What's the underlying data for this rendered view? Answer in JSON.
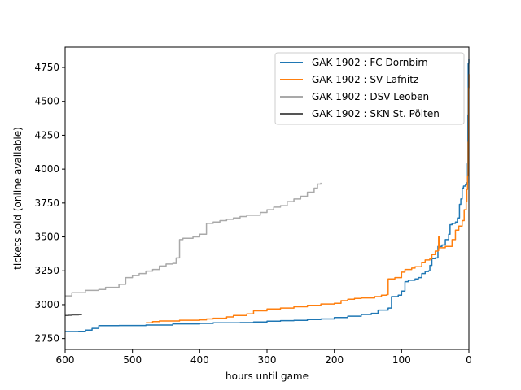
{
  "chart_data": {
    "type": "line",
    "title": "",
    "xlabel": "hours until game",
    "ylabel": "tickets sold (online available)",
    "xlim": [
      600,
      0
    ],
    "ylim": [
      2670,
      4900
    ],
    "x_ticks": [
      600,
      500,
      400,
      300,
      200,
      100,
      0
    ],
    "y_ticks": [
      2750,
      3000,
      3250,
      3500,
      3750,
      4000,
      4250,
      4500,
      4750
    ],
    "grid": false,
    "legend_position": "upper-right",
    "series": [
      {
        "name": "GAK 1902 : FC Dornbirn",
        "color": "#1f77b4",
        "points": [
          [
            600,
            2802
          ],
          [
            580,
            2803
          ],
          [
            570,
            2812
          ],
          [
            560,
            2825
          ],
          [
            550,
            2845
          ],
          [
            520,
            2846
          ],
          [
            480,
            2850
          ],
          [
            440,
            2858
          ],
          [
            400,
            2862
          ],
          [
            380,
            2866
          ],
          [
            340,
            2868
          ],
          [
            320,
            2872
          ],
          [
            300,
            2878
          ],
          [
            280,
            2882
          ],
          [
            260,
            2884
          ],
          [
            240,
            2890
          ],
          [
            220,
            2895
          ],
          [
            200,
            2905
          ],
          [
            180,
            2915
          ],
          [
            160,
            2928
          ],
          [
            145,
            2936
          ],
          [
            135,
            2960
          ],
          [
            120,
            2975
          ],
          [
            115,
            3060
          ],
          [
            105,
            3070
          ],
          [
            100,
            3100
          ],
          [
            95,
            3170
          ],
          [
            90,
            3180
          ],
          [
            80,
            3190
          ],
          [
            75,
            3200
          ],
          [
            70,
            3230
          ],
          [
            65,
            3245
          ],
          [
            60,
            3250
          ],
          [
            58,
            3290
          ],
          [
            55,
            3340
          ],
          [
            50,
            3345
          ],
          [
            46,
            3430
          ],
          [
            40,
            3440
          ],
          [
            35,
            3480
          ],
          [
            30,
            3520
          ],
          [
            28,
            3590
          ],
          [
            25,
            3600
          ],
          [
            20,
            3610
          ],
          [
            17,
            3640
          ],
          [
            14,
            3740
          ],
          [
            12,
            3780
          ],
          [
            10,
            3860
          ],
          [
            8,
            3875
          ],
          [
            5,
            3885
          ],
          [
            3,
            3900
          ],
          [
            2,
            4040
          ],
          [
            1.5,
            4400
          ],
          [
            1,
            4780
          ],
          [
            0,
            4810
          ]
        ]
      },
      {
        "name": "GAK 1902 : SV Lafnitz",
        "color": "#ff7f0e",
        "points": [
          [
            480,
            2866
          ],
          [
            470,
            2875
          ],
          [
            460,
            2880
          ],
          [
            430,
            2885
          ],
          [
            400,
            2888
          ],
          [
            390,
            2895
          ],
          [
            380,
            2900
          ],
          [
            360,
            2910
          ],
          [
            350,
            2920
          ],
          [
            330,
            2932
          ],
          [
            320,
            2955
          ],
          [
            300,
            2968
          ],
          [
            280,
            2975
          ],
          [
            260,
            2985
          ],
          [
            240,
            2995
          ],
          [
            220,
            3005
          ],
          [
            200,
            3010
          ],
          [
            190,
            3030
          ],
          [
            180,
            3040
          ],
          [
            170,
            3046
          ],
          [
            160,
            3050
          ],
          [
            140,
            3060
          ],
          [
            130,
            3070
          ],
          [
            122,
            3075
          ],
          [
            120,
            3190
          ],
          [
            110,
            3200
          ],
          [
            100,
            3240
          ],
          [
            95,
            3260
          ],
          [
            85,
            3270
          ],
          [
            80,
            3280
          ],
          [
            70,
            3310
          ],
          [
            65,
            3330
          ],
          [
            58,
            3340
          ],
          [
            55,
            3370
          ],
          [
            50,
            3395
          ],
          [
            46,
            3400
          ],
          [
            45,
            3500
          ],
          [
            44,
            3420
          ],
          [
            35,
            3430
          ],
          [
            25,
            3480
          ],
          [
            20,
            3550
          ],
          [
            15,
            3580
          ],
          [
            10,
            3620
          ],
          [
            7,
            3700
          ],
          [
            4,
            3760
          ],
          [
            3,
            3850
          ],
          [
            2,
            3950
          ],
          [
            1,
            4200
          ],
          [
            0.5,
            4600
          ],
          [
            0,
            4700
          ]
        ]
      },
      {
        "name": "GAK 1902 : DSV Leoben",
        "color": "#a9a9a9",
        "points": [
          [
            600,
            3065
          ],
          [
            590,
            3088
          ],
          [
            570,
            3105
          ],
          [
            550,
            3112
          ],
          [
            540,
            3128
          ],
          [
            520,
            3150
          ],
          [
            510,
            3200
          ],
          [
            500,
            3215
          ],
          [
            490,
            3230
          ],
          [
            480,
            3248
          ],
          [
            470,
            3260
          ],
          [
            460,
            3285
          ],
          [
            450,
            3300
          ],
          [
            440,
            3305
          ],
          [
            435,
            3345
          ],
          [
            430,
            3480
          ],
          [
            425,
            3490
          ],
          [
            410,
            3500
          ],
          [
            400,
            3520
          ],
          [
            390,
            3600
          ],
          [
            380,
            3610
          ],
          [
            370,
            3620
          ],
          [
            360,
            3630
          ],
          [
            350,
            3640
          ],
          [
            340,
            3650
          ],
          [
            330,
            3660
          ],
          [
            310,
            3680
          ],
          [
            300,
            3700
          ],
          [
            290,
            3720
          ],
          [
            280,
            3730
          ],
          [
            270,
            3760
          ],
          [
            260,
            3780
          ],
          [
            250,
            3800
          ],
          [
            240,
            3830
          ],
          [
            230,
            3860
          ],
          [
            225,
            3890
          ],
          [
            220,
            3900
          ]
        ]
      },
      {
        "name": "GAK 1902 : SKN St. Pölten",
        "color": "#555555",
        "points": [
          [
            600,
            2920
          ],
          [
            595,
            2922
          ],
          [
            590,
            2925
          ],
          [
            580,
            2926
          ],
          [
            575,
            2926
          ]
        ]
      }
    ]
  }
}
